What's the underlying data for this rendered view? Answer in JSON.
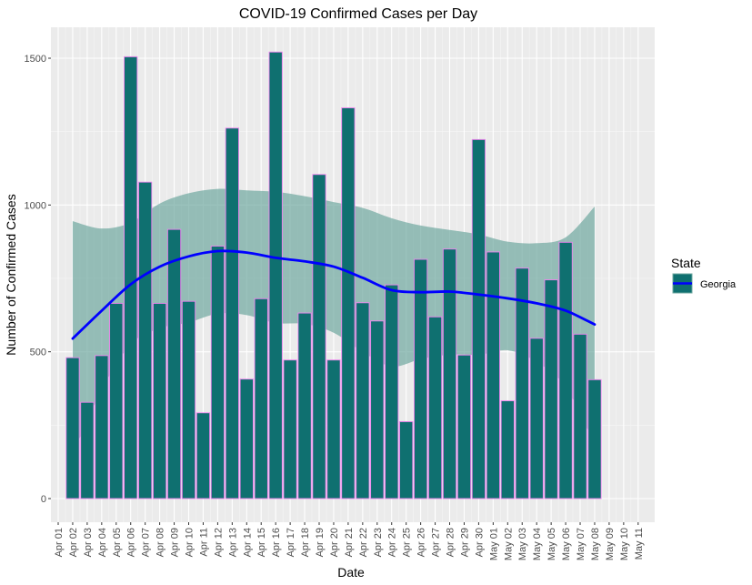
{
  "chart_data": {
    "type": "bar",
    "title": "COVID-19 Confirmed Cases per Day",
    "xlabel": "Date",
    "ylabel": "Number of Confirmed Cases",
    "ylim": [
      0,
      1600
    ],
    "yticks": [
      0,
      500,
      1000,
      1500
    ],
    "grid": true,
    "legend_position": "right",
    "legend_title": "State",
    "x_tick_labels": [
      "Apr 01",
      "Apr 02",
      "Apr 03",
      "Apr 04",
      "Apr 05",
      "Apr 06",
      "Apr 07",
      "Apr 08",
      "Apr 09",
      "Apr 10",
      "Apr 11",
      "Apr 12",
      "Apr 13",
      "Apr 14",
      "Apr 15",
      "Apr 16",
      "Apr 17",
      "Apr 18",
      "Apr 19",
      "Apr 20",
      "Apr 21",
      "Apr 22",
      "Apr 23",
      "Apr 24",
      "Apr 25",
      "Apr 26",
      "Apr 27",
      "Apr 28",
      "Apr 29",
      "Apr 30",
      "May 01",
      "May 02",
      "May 03",
      "May 04",
      "May 05",
      "May 06",
      "May 07",
      "May 08",
      "May 09",
      "May 10",
      "May 11"
    ],
    "series": [
      {
        "name": "Georgia",
        "fill_color": "#0f7070",
        "outline_color": "#ee82ee",
        "points": [
          {
            "x": "Apr 02",
            "y": 480
          },
          {
            "x": "Apr 03",
            "y": 328
          },
          {
            "x": "Apr 04",
            "y": 487
          },
          {
            "x": "Apr 05",
            "y": 665
          },
          {
            "x": "Apr 06",
            "y": 1505
          },
          {
            "x": "Apr 07",
            "y": 1078
          },
          {
            "x": "Apr 08",
            "y": 665
          },
          {
            "x": "Apr 09",
            "y": 917
          },
          {
            "x": "Apr 10",
            "y": 672
          },
          {
            "x": "Apr 11",
            "y": 292
          },
          {
            "x": "Apr 12",
            "y": 860
          },
          {
            "x": "Apr 13",
            "y": 1262
          },
          {
            "x": "Apr 14",
            "y": 407
          },
          {
            "x": "Apr 15",
            "y": 681
          },
          {
            "x": "Apr 16",
            "y": 1521
          },
          {
            "x": "Apr 17",
            "y": 472
          },
          {
            "x": "Apr 18",
            "y": 632
          },
          {
            "x": "Apr 19",
            "y": 1104
          },
          {
            "x": "Apr 20",
            "y": 472
          },
          {
            "x": "Apr 21",
            "y": 1331
          },
          {
            "x": "Apr 22",
            "y": 667
          },
          {
            "x": "Apr 23",
            "y": 605
          },
          {
            "x": "Apr 24",
            "y": 728
          },
          {
            "x": "Apr 25",
            "y": 262
          },
          {
            "x": "Apr 26",
            "y": 815
          },
          {
            "x": "Apr 27",
            "y": 619
          },
          {
            "x": "Apr 28",
            "y": 850
          },
          {
            "x": "Apr 29",
            "y": 489
          },
          {
            "x": "Apr 30",
            "y": 1223
          },
          {
            "x": "May 01",
            "y": 840
          },
          {
            "x": "May 02",
            "y": 333
          },
          {
            "x": "May 03",
            "y": 785
          },
          {
            "x": "May 04",
            "y": 546
          },
          {
            "x": "May 05",
            "y": 745
          },
          {
            "x": "May 06",
            "y": 873
          },
          {
            "x": "May 07",
            "y": 560
          },
          {
            "x": "May 08",
            "y": 405
          }
        ]
      }
    ],
    "smooth_line": {
      "name": "Georgia",
      "color": "#0000ff",
      "points": [
        {
          "x": "Apr 02",
          "y": 545
        },
        {
          "x": "Apr 04",
          "y": 640
        },
        {
          "x": "Apr 06",
          "y": 730
        },
        {
          "x": "Apr 08",
          "y": 790
        },
        {
          "x": "Apr 10",
          "y": 825
        },
        {
          "x": "Apr 12",
          "y": 843
        },
        {
          "x": "Apr 14",
          "y": 838
        },
        {
          "x": "Apr 16",
          "y": 820
        },
        {
          "x": "Apr 18",
          "y": 808
        },
        {
          "x": "Apr 20",
          "y": 790
        },
        {
          "x": "Apr 22",
          "y": 752
        },
        {
          "x": "Apr 24",
          "y": 710
        },
        {
          "x": "Apr 26",
          "y": 703
        },
        {
          "x": "Apr 28",
          "y": 705
        },
        {
          "x": "Apr 30",
          "y": 695
        },
        {
          "x": "May 02",
          "y": 682
        },
        {
          "x": "May 04",
          "y": 665
        },
        {
          "x": "May 06",
          "y": 640
        },
        {
          "x": "May 08",
          "y": 593
        }
      ]
    },
    "confidence_band": {
      "color": "#6fa8a0",
      "points": [
        {
          "x": "Apr 02",
          "lower": 150,
          "upper": 945
        },
        {
          "x": "Apr 04",
          "lower": 370,
          "upper": 920
        },
        {
          "x": "Apr 06",
          "lower": 525,
          "upper": 940
        },
        {
          "x": "Apr 08",
          "lower": 580,
          "upper": 1005
        },
        {
          "x": "Apr 10",
          "lower": 600,
          "upper": 1040
        },
        {
          "x": "Apr 12",
          "lower": 630,
          "upper": 1055
        },
        {
          "x": "Apr 14",
          "lower": 625,
          "upper": 1050
        },
        {
          "x": "Apr 16",
          "lower": 598,
          "upper": 1045
        },
        {
          "x": "Apr 18",
          "lower": 595,
          "upper": 1030
        },
        {
          "x": "Apr 20",
          "lower": 565,
          "upper": 1010
        },
        {
          "x": "Apr 22",
          "lower": 500,
          "upper": 990
        },
        {
          "x": "Apr 24",
          "lower": 450,
          "upper": 955
        },
        {
          "x": "Apr 26",
          "lower": 475,
          "upper": 930
        },
        {
          "x": "Apr 28",
          "lower": 490,
          "upper": 915
        },
        {
          "x": "Apr 30",
          "lower": 490,
          "upper": 900
        },
        {
          "x": "May 02",
          "lower": 505,
          "upper": 875
        },
        {
          "x": "May 04",
          "lower": 465,
          "upper": 870
        },
        {
          "x": "May 06",
          "lower": 380,
          "upper": 890
        },
        {
          "x": "May 08",
          "lower": 185,
          "upper": 995
        }
      ]
    }
  }
}
